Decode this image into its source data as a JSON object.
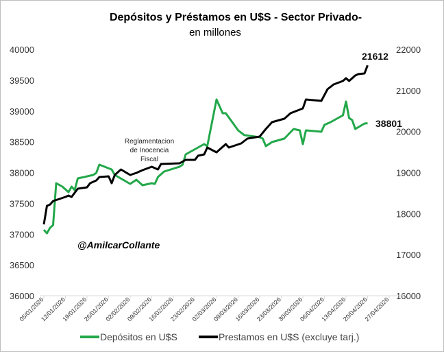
{
  "chart_data": {
    "type": "line",
    "title": "Depósitos y Préstamos  en U$S - Sector Privado-",
    "subtitle": "en millones",
    "x_start_date": "2026-01-05",
    "x_unit": "days",
    "x_tick_labels": [
      "05/01/2026",
      "12/01/2026",
      "19/01/2026",
      "26/01/2026",
      "02/02/2026",
      "09/02/2026",
      "16/02/2026",
      "23/02/2026",
      "02/03/2026",
      "09/03/2026",
      "16/03/2026",
      "23/03/2026",
      "30/03/2026",
      "06/04/2026",
      "13/04/2026",
      "20/04/2026",
      "27/04/2026"
    ],
    "y_left": {
      "range": [
        36000,
        40000
      ],
      "ticks": [
        "40000",
        "39500",
        "39000",
        "38500",
        "38000",
        "37500",
        "37000",
        "36500",
        "36000"
      ]
    },
    "y_right": {
      "range": [
        16000,
        22000
      ],
      "ticks": [
        "22000",
        "21000",
        "20000",
        "19000",
        "18000",
        "17000",
        "16000"
      ]
    },
    "grid": false,
    "legend_position": "bottom",
    "series": [
      {
        "name": "Depósitos en U$S",
        "axis": "left",
        "color": "#22a84a",
        "points": [
          [
            0,
            37070
          ],
          [
            1,
            37014
          ],
          [
            2,
            37103
          ],
          [
            3,
            37148
          ],
          [
            4,
            37827
          ],
          [
            6,
            37772
          ],
          [
            8,
            37683
          ],
          [
            9,
            37772
          ],
          [
            10,
            37716
          ],
          [
            11,
            37905
          ],
          [
            15,
            37950
          ],
          [
            16,
            37961
          ],
          [
            17,
            37994
          ],
          [
            18,
            38128
          ],
          [
            22,
            38050
          ],
          [
            23,
            37961
          ],
          [
            28,
            37816
          ],
          [
            30,
            37883
          ],
          [
            32,
            37794
          ],
          [
            35,
            37827
          ],
          [
            36,
            37816
          ],
          [
            37,
            37928
          ],
          [
            39,
            38017
          ],
          [
            44,
            38095
          ],
          [
            45,
            38128
          ],
          [
            46,
            38295
          ],
          [
            50,
            38407
          ],
          [
            52,
            38462
          ],
          [
            53,
            38429
          ],
          [
            56,
            39187
          ],
          [
            58,
            38964
          ],
          [
            59,
            38964
          ],
          [
            63,
            38686
          ],
          [
            65,
            38608
          ],
          [
            70,
            38574
          ],
          [
            71,
            38552
          ],
          [
            72,
            38429
          ],
          [
            74,
            38496
          ],
          [
            78,
            38552
          ],
          [
            81,
            38708
          ],
          [
            83,
            38685
          ],
          [
            84,
            38462
          ],
          [
            85,
            38685
          ],
          [
            90,
            38663
          ],
          [
            91,
            38774
          ],
          [
            93,
            38819
          ],
          [
            95,
            38875
          ],
          [
            97,
            38930
          ],
          [
            98,
            39153
          ],
          [
            99,
            38886
          ],
          [
            100,
            38852
          ],
          [
            101,
            38708
          ],
          [
            104,
            38797
          ],
          [
            105,
            38801
          ]
        ],
        "end_label": "38801"
      },
      {
        "name": "Prestamos en U$S (excluye tarj.)",
        "axis": "right",
        "color": "#000000",
        "points": [
          [
            0,
            17738
          ],
          [
            1,
            18189
          ],
          [
            2,
            18222
          ],
          [
            3,
            18306
          ],
          [
            7,
            18406
          ],
          [
            8,
            18440
          ],
          [
            9,
            18406
          ],
          [
            11,
            18607
          ],
          [
            14,
            18640
          ],
          [
            15,
            18741
          ],
          [
            17,
            18808
          ],
          [
            18,
            18891
          ],
          [
            21,
            18908
          ],
          [
            22,
            18741
          ],
          [
            23,
            18941
          ],
          [
            25,
            19075
          ],
          [
            28,
            18941
          ],
          [
            30,
            18991
          ],
          [
            32,
            19058
          ],
          [
            35,
            19142
          ],
          [
            37,
            19075
          ],
          [
            38,
            19209
          ],
          [
            44,
            19225
          ],
          [
            46,
            19309
          ],
          [
            49,
            19309
          ],
          [
            50,
            19409
          ],
          [
            52,
            19443
          ],
          [
            53,
            19610
          ],
          [
            56,
            19493
          ],
          [
            59,
            19693
          ],
          [
            60,
            19610
          ],
          [
            64,
            19710
          ],
          [
            66,
            19827
          ],
          [
            70,
            19877
          ],
          [
            72,
            20061
          ],
          [
            74,
            20228
          ],
          [
            78,
            20312
          ],
          [
            80,
            20446
          ],
          [
            84,
            20563
          ],
          [
            85,
            20780
          ],
          [
            90,
            20747
          ],
          [
            92,
            21031
          ],
          [
            94,
            21148
          ],
          [
            97,
            21231
          ],
          [
            98,
            21298
          ],
          [
            99,
            21231
          ],
          [
            101,
            21365
          ],
          [
            102,
            21398
          ],
          [
            104,
            21415
          ],
          [
            105,
            21612
          ]
        ],
        "end_label": "21612"
      }
    ],
    "annotations": {
      "event_lines": [
        "Reglamentacion",
        "de Inocencia",
        "Fiscal"
      ],
      "watermark": "@AmilcarCollante"
    }
  }
}
